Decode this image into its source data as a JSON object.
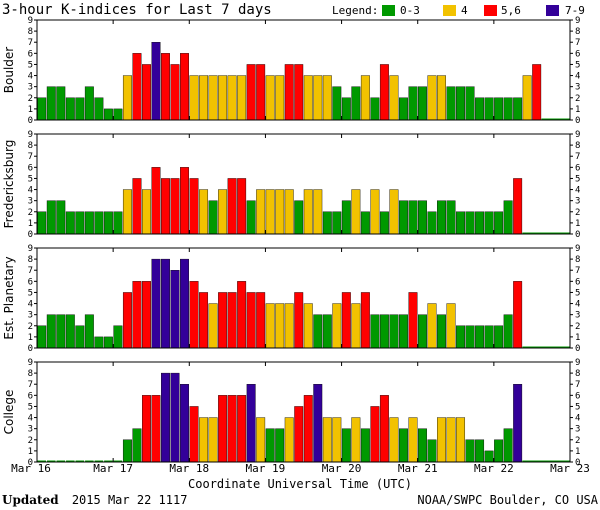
{
  "title": "3-hour K-indices for Last 7 days",
  "legend": {
    "label": "Legend:",
    "items": [
      {
        "label": "0-3",
        "color": "#009900"
      },
      {
        "label": "4",
        "color": "#F2C200"
      },
      {
        "label": "5,6",
        "color": "#FF0000"
      },
      {
        "label": "7-9",
        "color": "#330099"
      }
    ]
  },
  "footer": {
    "updated_label": "Updated",
    "updated_value": "2015 Mar 22 1117",
    "credit": "NOAA/SWPC Boulder, CO USA"
  },
  "chart_data": {
    "type": "bar",
    "xlabel": "Coordinate Universal Time (UTC)",
    "x_ticks": [
      "Mar 16",
      "Mar 17",
      "Mar 18",
      "Mar 19",
      "Mar 20",
      "Mar 21",
      "Mar 22",
      "Mar 23"
    ],
    "ylim": [
      0,
      9
    ],
    "y_ticks": [
      0,
      1,
      2,
      3,
      4,
      5,
      6,
      7,
      8,
      9
    ],
    "bins_per_day": 8,
    "grid": false,
    "series": [
      {
        "name": "Boulder",
        "values": [
          2,
          3,
          3,
          2,
          2,
          3,
          2,
          1,
          1,
          4,
          6,
          5,
          7,
          6,
          5,
          6,
          4,
          4,
          4,
          4,
          4,
          4,
          5,
          5,
          4,
          4,
          5,
          5,
          4,
          4,
          4,
          3,
          2,
          3,
          4,
          2,
          5,
          4,
          2,
          3,
          3,
          4,
          4,
          3,
          3,
          3,
          2,
          2,
          2,
          2,
          2,
          4,
          5
        ]
      },
      {
        "name": "Fredericksburg",
        "values": [
          2,
          3,
          3,
          2,
          2,
          2,
          2,
          2,
          2,
          4,
          5,
          4,
          6,
          5,
          5,
          6,
          5,
          4,
          3,
          4,
          5,
          5,
          3,
          4,
          4,
          4,
          4,
          3,
          4,
          4,
          2,
          2,
          3,
          4,
          2,
          4,
          2,
          4,
          3,
          3,
          3,
          2,
          3,
          3,
          2,
          2,
          2,
          2,
          2,
          3,
          5
        ]
      },
      {
        "name": "Est. Planetary",
        "values": [
          2,
          3,
          3,
          3,
          2,
          3,
          1,
          1,
          2,
          5,
          6,
          6,
          8,
          8,
          7,
          8,
          6,
          5,
          4,
          5,
          5,
          6,
          5,
          5,
          4,
          4,
          4,
          5,
          4,
          3,
          3,
          4,
          5,
          4,
          5,
          3,
          3,
          3,
          3,
          5,
          3,
          4,
          3,
          4,
          2,
          2,
          2,
          2,
          2,
          3,
          6
        ]
      },
      {
        "name": "College",
        "values": [
          0,
          0,
          0,
          0,
          0,
          0,
          0,
          0,
          0,
          2,
          3,
          6,
          6,
          8,
          8,
          7,
          5,
          4,
          4,
          6,
          6,
          6,
          7,
          4,
          3,
          3,
          4,
          5,
          6,
          7,
          4,
          4,
          3,
          4,
          3,
          5,
          6,
          4,
          3,
          4,
          3,
          2,
          4,
          4,
          4,
          2,
          2,
          1,
          2,
          3,
          7
        ]
      }
    ]
  }
}
